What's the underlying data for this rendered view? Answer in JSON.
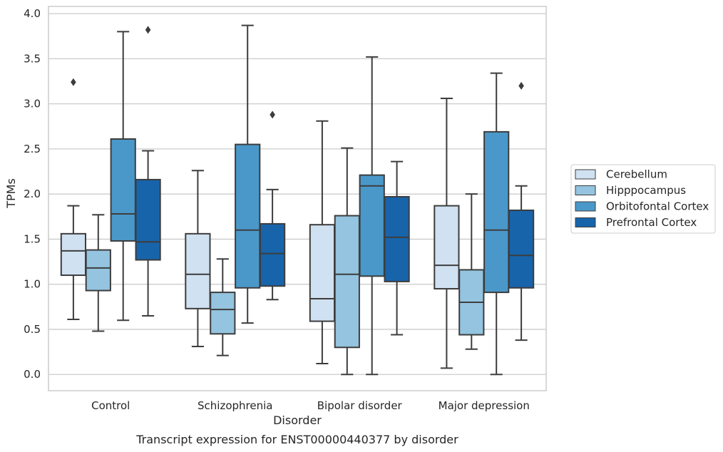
{
  "chart_data": {
    "type": "box",
    "caption": "Transcript expression for ENST00000440377 by disorder",
    "xlabel": "Disorder",
    "ylabel": "TPMs",
    "ylim": [
      -0.18,
      4.08
    ],
    "yticks": [
      "0.0",
      "0.5",
      "1.0",
      "1.5",
      "2.0",
      "2.5",
      "3.0",
      "3.5",
      "4.0"
    ],
    "grid": true,
    "legend_position": "right",
    "categories": [
      "Control",
      "Schizophrenia",
      "Bipolar disorder",
      "Major depression"
    ],
    "series": [
      {
        "name": "Cerebellum",
        "color": "#d0e1f1",
        "boxes": [
          {
            "min": 0.61,
            "q1": 1.1,
            "median": 1.37,
            "q3": 1.56,
            "max": 1.87,
            "outliers": [
              3.24
            ]
          },
          {
            "min": 0.31,
            "q1": 0.73,
            "median": 1.11,
            "q3": 1.56,
            "max": 2.26,
            "outliers": []
          },
          {
            "min": 0.12,
            "q1": 0.59,
            "median": 0.84,
            "q3": 1.66,
            "max": 2.81,
            "outliers": []
          },
          {
            "min": 0.07,
            "q1": 0.95,
            "median": 1.21,
            "q3": 1.87,
            "max": 3.06,
            "outliers": []
          }
        ]
      },
      {
        "name": "Hipppocampus",
        "color": "#94c4df",
        "boxes": [
          {
            "min": 0.48,
            "q1": 0.93,
            "median": 1.18,
            "q3": 1.38,
            "max": 1.77,
            "outliers": []
          },
          {
            "min": 0.21,
            "q1": 0.45,
            "median": 0.72,
            "q3": 0.91,
            "max": 1.28,
            "outliers": []
          },
          {
            "min": 0.0,
            "q1": 0.3,
            "median": 1.11,
            "q3": 1.76,
            "max": 2.51,
            "outliers": []
          },
          {
            "min": 0.28,
            "q1": 0.44,
            "median": 0.8,
            "q3": 1.16,
            "max": 2.0,
            "outliers": []
          }
        ]
      },
      {
        "name": "Orbitofontal Cortex",
        "color": "#4a98c9",
        "boxes": [
          {
            "min": 0.6,
            "q1": 1.48,
            "median": 1.78,
            "q3": 2.61,
            "max": 3.8,
            "outliers": []
          },
          {
            "min": 0.57,
            "q1": 0.96,
            "median": 1.6,
            "q3": 2.55,
            "max": 3.87,
            "outliers": []
          },
          {
            "min": 0.0,
            "q1": 1.09,
            "median": 2.09,
            "q3": 2.21,
            "max": 3.52,
            "outliers": []
          },
          {
            "min": 0.0,
            "q1": 0.91,
            "median": 1.6,
            "q3": 2.69,
            "max": 3.34,
            "outliers": []
          }
        ]
      },
      {
        "name": "Prefrontal Cortex",
        "color": "#1764ab",
        "boxes": [
          {
            "min": 0.65,
            "q1": 1.27,
            "median": 1.47,
            "q3": 2.16,
            "max": 2.48,
            "outliers": [
              3.82
            ]
          },
          {
            "min": 0.83,
            "q1": 0.98,
            "median": 1.34,
            "q3": 1.67,
            "max": 2.05,
            "outliers": [
              2.88
            ]
          },
          {
            "min": 0.44,
            "q1": 1.03,
            "median": 1.52,
            "q3": 1.97,
            "max": 2.36,
            "outliers": []
          },
          {
            "min": 0.38,
            "q1": 0.96,
            "median": 1.32,
            "q3": 1.82,
            "max": 2.09,
            "outliers": [
              3.2
            ]
          }
        ]
      }
    ]
  }
}
